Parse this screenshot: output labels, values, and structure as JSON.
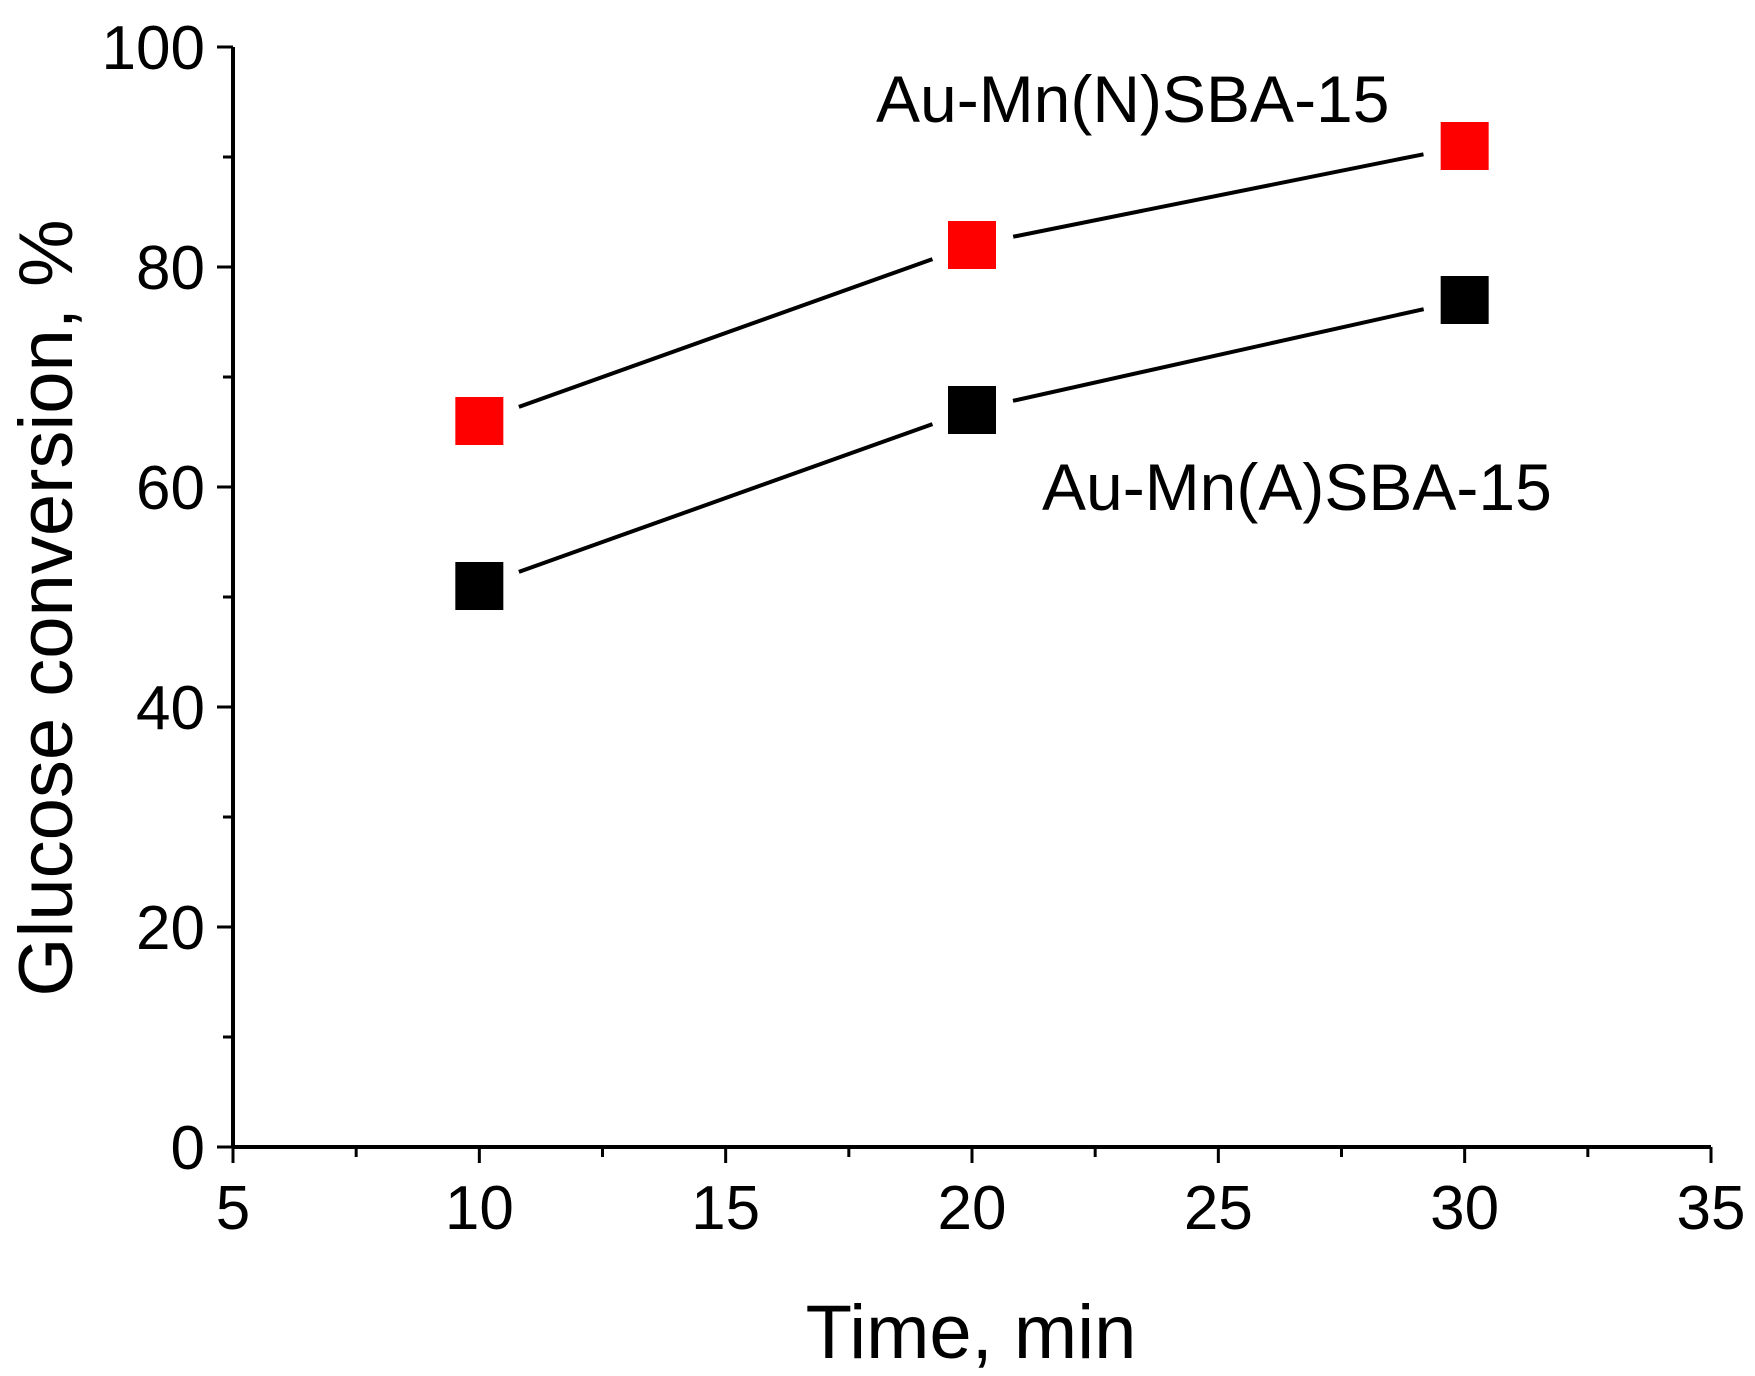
{
  "chart_data": {
    "type": "line",
    "title": "",
    "xlabel": "Time, min",
    "ylabel": "Glucose conversion, %",
    "xlim": [
      5,
      35
    ],
    "ylim": [
      0,
      100
    ],
    "x_ticks": [
      5,
      10,
      15,
      20,
      25,
      30,
      35
    ],
    "y_ticks": [
      0,
      20,
      40,
      60,
      80,
      100
    ],
    "x_minor_step": 2.5,
    "y_minor_step": 10,
    "grid": false,
    "legend": "none (series labeled directly on plot)",
    "x": [
      10,
      20,
      30
    ],
    "series": [
      {
        "name": "Au-Mn(N)SBA-15",
        "values": [
          66,
          82,
          91
        ],
        "marker": "square",
        "marker_color": "#ff0000",
        "line_color": "#000000"
      },
      {
        "name": "Au-Mn(A)SBA-15",
        "values": [
          51,
          67,
          77
        ],
        "marker": "square",
        "marker_color": "#000000",
        "line_color": "#000000"
      }
    ],
    "annotations": [
      {
        "text": "Au-Mn(N)SBA-15",
        "series": 0
      },
      {
        "text": "Au-Mn(A)SBA-15",
        "series": 1
      }
    ]
  }
}
